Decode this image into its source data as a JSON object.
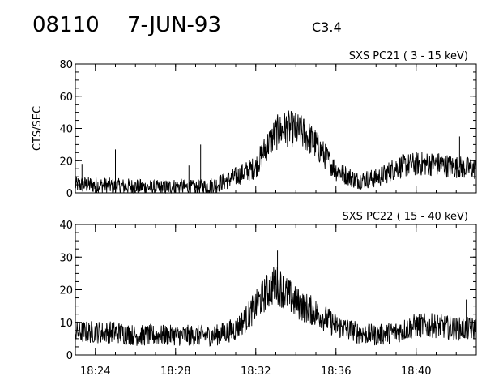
{
  "header": {
    "event_id": "08110",
    "date": "7-JUN-93",
    "goes_class": "C3.4"
  },
  "chart_data": [
    {
      "type": "line",
      "title": "SXS PC21  (  3 - 15 keV)",
      "ylabel": "CTS/SEC",
      "xlabel": "",
      "xlim": [
        "18:23",
        "18:43"
      ],
      "ylim": [
        0,
        80
      ],
      "yticks": [
        0,
        20,
        40,
        60,
        80
      ],
      "xticks": [
        "18:24",
        "18:28",
        "18:32",
        "18:36",
        "18:40"
      ],
      "grid": false,
      "series": [
        {
          "x": [
            "18:23",
            "18:24",
            "18:25",
            "18:26",
            "18:27",
            "18:28",
            "18:29",
            "18:30",
            "18:31",
            "18:32",
            "18:32:30",
            "18:33",
            "18:33:30",
            "18:34",
            "18:34:30",
            "18:35",
            "18:35:30",
            "18:36",
            "18:37",
            "18:38",
            "18:38:30",
            "18:39",
            "18:40",
            "18:41",
            "18:42",
            "18:43"
          ],
          "y": [
            5,
            5,
            4,
            4,
            3,
            4,
            3,
            5,
            10,
            16,
            28,
            37,
            40,
            39,
            36,
            30,
            22,
            14,
            8,
            9,
            12,
            16,
            18,
            18,
            16,
            15
          ],
          "spikes": [
            [
              "18:23:20",
              18
            ],
            [
              "18:25",
              27
            ],
            [
              "18:28:40",
              17
            ],
            [
              "18:29:15",
              30
            ],
            [
              "18:42:10",
              35
            ]
          ]
        }
      ]
    },
    {
      "type": "line",
      "title": "SXS PC22  ( 15 - 40 keV)",
      "ylabel": "",
      "xlabel": "",
      "xlim": [
        "18:23",
        "18:43"
      ],
      "ylim": [
        0,
        40
      ],
      "yticks": [
        0,
        10,
        20,
        30,
        40
      ],
      "xticks": [
        "18:24",
        "18:28",
        "18:32",
        "18:36",
        "18:40"
      ],
      "grid": false,
      "series": [
        {
          "x": [
            "18:23",
            "18:24",
            "18:25",
            "18:26",
            "18:27",
            "18:28",
            "18:29",
            "18:30",
            "18:31",
            "18:31:30",
            "18:32",
            "18:32:30",
            "18:33",
            "18:33:30",
            "18:34",
            "18:35",
            "18:36",
            "18:37",
            "18:38",
            "18:39",
            "18:40",
            "18:41",
            "18:42",
            "18:43"
          ],
          "y": [
            7,
            7,
            7,
            6,
            6,
            6,
            6,
            6,
            8,
            11,
            15,
            19,
            22,
            19,
            16,
            13,
            9,
            7,
            6,
            7,
            9,
            9,
            8,
            8
          ],
          "spikes": [
            [
              "18:33:05",
              32
            ],
            [
              "18:42:30",
              17
            ]
          ]
        }
      ]
    }
  ]
}
